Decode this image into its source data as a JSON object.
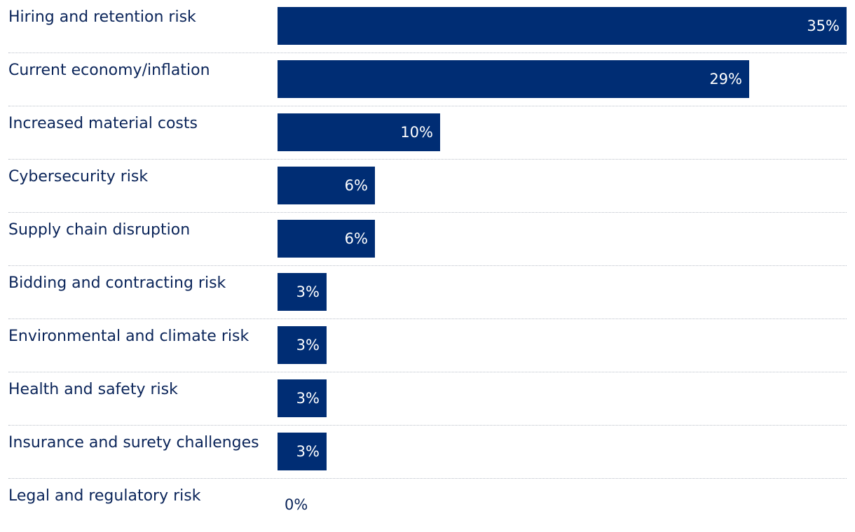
{
  "chart_data": {
    "type": "bar",
    "orientation": "horizontal",
    "categories": [
      "Hiring and retention risk",
      "Current economy/inflation",
      "Increased material costs",
      "Cybersecurity risk",
      "Supply chain disruption",
      "Bidding and contracting risk",
      "Environmental and climate risk",
      "Health and safety risk",
      "Insurance and surety challenges",
      "Legal and regulatory risk"
    ],
    "values": [
      35,
      29,
      10,
      6,
      6,
      3,
      3,
      3,
      3,
      0
    ],
    "value_labels": [
      "35%",
      "29%",
      "10%",
      "6%",
      "6%",
      "3%",
      "3%",
      "3%",
      "3%",
      "0%"
    ],
    "xlim": [
      0,
      35
    ],
    "unit": "%",
    "bar_color": "#002d74",
    "label_color": "#0a2459",
    "grid": false,
    "legend": "none"
  }
}
